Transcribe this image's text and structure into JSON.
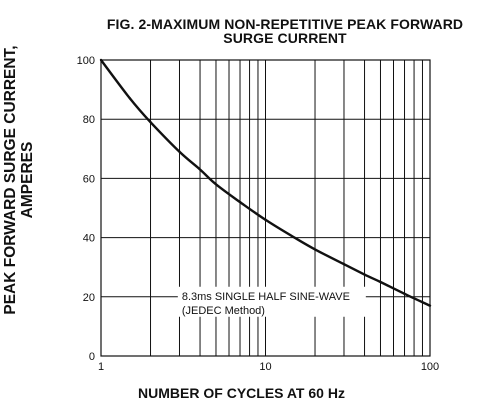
{
  "chart_data": {
    "type": "line",
    "title": "FIG. 2-MAXIMUM NON-REPETITIVE PEAK FORWARD",
    "subtitle": "SURGE CURRENT",
    "ylabel": [
      "PEAK  FORWARD SURGE CURRENT,",
      "AMPERES"
    ],
    "xlabel": "NUMBER OF CYCLES AT 60 Hz",
    "x_scale": "log",
    "xlim": [
      1,
      100
    ],
    "ylim": [
      0,
      100
    ],
    "grid": true,
    "x_ticks": [
      {
        "value": 1,
        "label": "1"
      },
      {
        "value": 10,
        "label": "10"
      },
      {
        "value": 100,
        "label": "100"
      }
    ],
    "y_ticks": [
      {
        "value": 0,
        "label": "0"
      },
      {
        "value": 20,
        "label": "20"
      },
      {
        "value": 40,
        "label": "40"
      },
      {
        "value": 60,
        "label": "60"
      },
      {
        "value": 80,
        "label": "80"
      },
      {
        "value": 100,
        "label": "100"
      }
    ],
    "series": [
      {
        "x": [
          1,
          1.5,
          2,
          3,
          4,
          5,
          7,
          10,
          15,
          20,
          30,
          40,
          50,
          70,
          100
        ],
        "y": [
          100,
          87,
          79,
          69,
          63,
          58,
          52,
          46,
          40,
          36,
          31,
          27.5,
          25,
          21,
          17
        ]
      }
    ],
    "annotation": {
      "lines": [
        "8.3ms SINGLE HALF SINE-WAVE",
        "(JEDEC Method)"
      ],
      "x": 3.1,
      "y": 19
    },
    "colors": {
      "curve": "#111111",
      "grid": "#111111",
      "background": "#ffffff"
    }
  }
}
